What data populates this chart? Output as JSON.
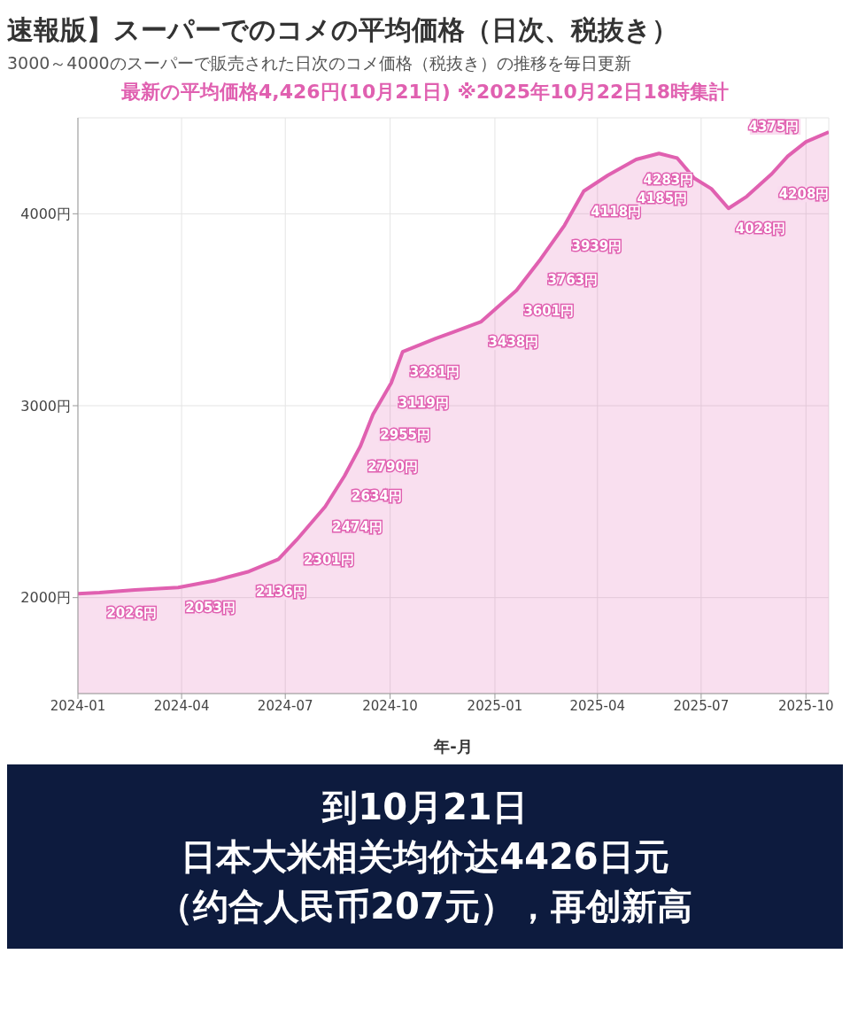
{
  "chart_data": {
    "type": "area",
    "title": "速報版】スーパーでのコメの平均価格（日次、税抜き）",
    "subtitle": "3000～4000のスーパーで販売された日次のコメ価格（税抜き）の推移を毎日更新",
    "xlabel": "年-月",
    "annotations": [
      "最新の平均価格4,426円(10月21日) ※2025年10月22日18時集計",
      "到10月21日",
      "日本大米相关均价达4426日元",
      "（约合人民币207元），再创新高"
    ],
    "x": [
      "2024-01-01",
      "2024-01-20",
      "2024-02-20",
      "2024-03-29",
      "2024-05-01",
      "2024-05-30",
      "2024-06-25",
      "2024-07-11",
      "2024-08-05",
      "2024-08-22",
      "2024-09-05",
      "2024-09-16",
      "2024-10-02",
      "2024-10-12",
      "2024-11-10",
      "2024-12-20",
      "2025-01-20",
      "2025-02-10",
      "2025-03-03",
      "2025-03-20",
      "2025-04-10",
      "2025-05-05",
      "2025-05-25",
      "2025-06-10",
      "2025-06-25",
      "2025-07-10",
      "2025-07-25",
      "2025-08-10",
      "2025-09-01",
      "2025-09-15",
      "2025-10-01",
      "2025-10-21"
    ],
    "series": [
      {
        "color": "#e060b0",
        "values": [
          2020,
          2026,
          2040,
          2053,
          2090,
          2136,
          2200,
          2301,
          2474,
          2634,
          2790,
          2955,
          3119,
          3281,
          3350,
          3438,
          3601,
          3763,
          3939,
          4118,
          4200,
          4283,
          4314,
          4290,
          4185,
          4130,
          4028,
          4090,
          4208,
          4300,
          4375,
          4426
        ],
        "value_labels": [
          null,
          "2026円",
          null,
          "2053円",
          null,
          "2136円",
          null,
          "2301円",
          "2474円",
          "2634円",
          "2790円",
          "2955円",
          "3119円",
          "3281円",
          null,
          "3438円",
          "3601円",
          "3763円",
          "3939円",
          "4118円",
          null,
          "4283円",
          null,
          null,
          "4185円",
          null,
          "4028円",
          null,
          "4208円",
          null,
          "4375円",
          null
        ]
      }
    ],
    "xlim": [
      "2024-01-01",
      "2025-10-21"
    ],
    "xticks": [
      {
        "value": "2024-01-01",
        "label": "2024-01"
      },
      {
        "value": "2024-04-01",
        "label": "2024-04"
      },
      {
        "value": "2024-07-01",
        "label": "2024-07"
      },
      {
        "value": "2024-10-01",
        "label": "2024-10"
      },
      {
        "value": "2025-01-01",
        "label": "2025-01"
      },
      {
        "value": "2025-04-01",
        "label": "2025-04"
      },
      {
        "value": "2025-07-01",
        "label": "2025-07"
      },
      {
        "value": "2025-10-01",
        "label": "2025-10"
      }
    ],
    "ylim": [
      1500,
      4500
    ],
    "yticks": [
      {
        "value": 2000,
        "label": "2000円"
      },
      {
        "value": 3000,
        "label": "3000円"
      },
      {
        "value": 4000,
        "label": "4000円"
      }
    ],
    "grid": true
  }
}
